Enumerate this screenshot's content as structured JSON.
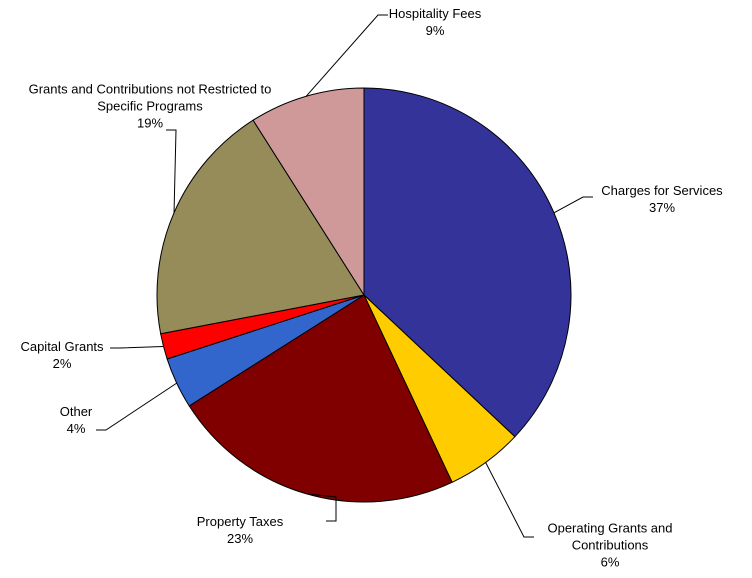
{
  "chart_data": {
    "type": "pie",
    "categories": [
      "Charges for Services",
      "Operating Grants and Contributions",
      "Property Taxes",
      "Other",
      "Capital Grants",
      "Grants and Contributions not Restricted to Specific Programs",
      "Hospitality Fees"
    ],
    "values": [
      37,
      6,
      23,
      4,
      2,
      19,
      9
    ],
    "value_labels": [
      "37%",
      "6%",
      "23%",
      "4%",
      "2%",
      "19%",
      "9%"
    ],
    "colors": [
      "#333399",
      "#ffcc00",
      "#800000",
      "#3366cc",
      "#ff0000",
      "#968c5a",
      "#d09999"
    ]
  }
}
